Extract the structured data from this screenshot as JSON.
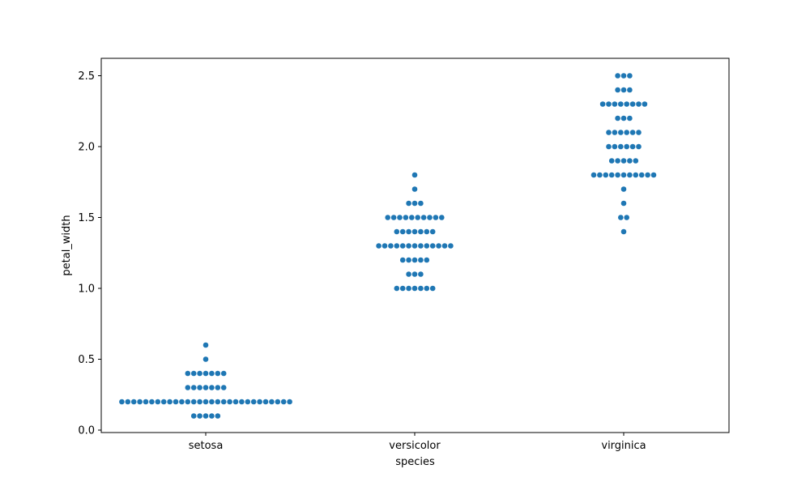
{
  "chart_data": {
    "type": "swarm",
    "title": "",
    "xlabel": "species",
    "ylabel": "petal_width",
    "categories": [
      "setosa",
      "versicolor",
      "virginica"
    ],
    "ylim": [
      -0.02,
      2.62
    ],
    "yticks": [
      0.0,
      0.5,
      1.0,
      1.5,
      2.0,
      2.5
    ],
    "ytick_labels": [
      "0.0",
      "0.5",
      "1.0",
      "1.5",
      "2.0",
      "2.5"
    ],
    "grid": false,
    "legend": "none",
    "point_color": "#1f77b4",
    "series": [
      {
        "name": "setosa",
        "value_counts": [
          {
            "value": 0.1,
            "count": 5
          },
          {
            "value": 0.2,
            "count": 29
          },
          {
            "value": 0.3,
            "count": 7
          },
          {
            "value": 0.4,
            "count": 7
          },
          {
            "value": 0.5,
            "count": 1
          },
          {
            "value": 0.6,
            "count": 1
          }
        ]
      },
      {
        "name": "versicolor",
        "value_counts": [
          {
            "value": 1.0,
            "count": 7
          },
          {
            "value": 1.1,
            "count": 3
          },
          {
            "value": 1.2,
            "count": 5
          },
          {
            "value": 1.3,
            "count": 13
          },
          {
            "value": 1.4,
            "count": 7
          },
          {
            "value": 1.5,
            "count": 10
          },
          {
            "value": 1.6,
            "count": 3
          },
          {
            "value": 1.7,
            "count": 1
          },
          {
            "value": 1.8,
            "count": 1
          }
        ]
      },
      {
        "name": "virginica",
        "value_counts": [
          {
            "value": 1.4,
            "count": 1
          },
          {
            "value": 1.5,
            "count": 2
          },
          {
            "value": 1.6,
            "count": 1
          },
          {
            "value": 1.7,
            "count": 1
          },
          {
            "value": 1.8,
            "count": 11
          },
          {
            "value": 1.9,
            "count": 5
          },
          {
            "value": 2.0,
            "count": 6
          },
          {
            "value": 2.1,
            "count": 6
          },
          {
            "value": 2.2,
            "count": 3
          },
          {
            "value": 2.3,
            "count": 8
          },
          {
            "value": 2.4,
            "count": 3
          },
          {
            "value": 2.5,
            "count": 3
          }
        ]
      }
    ]
  }
}
